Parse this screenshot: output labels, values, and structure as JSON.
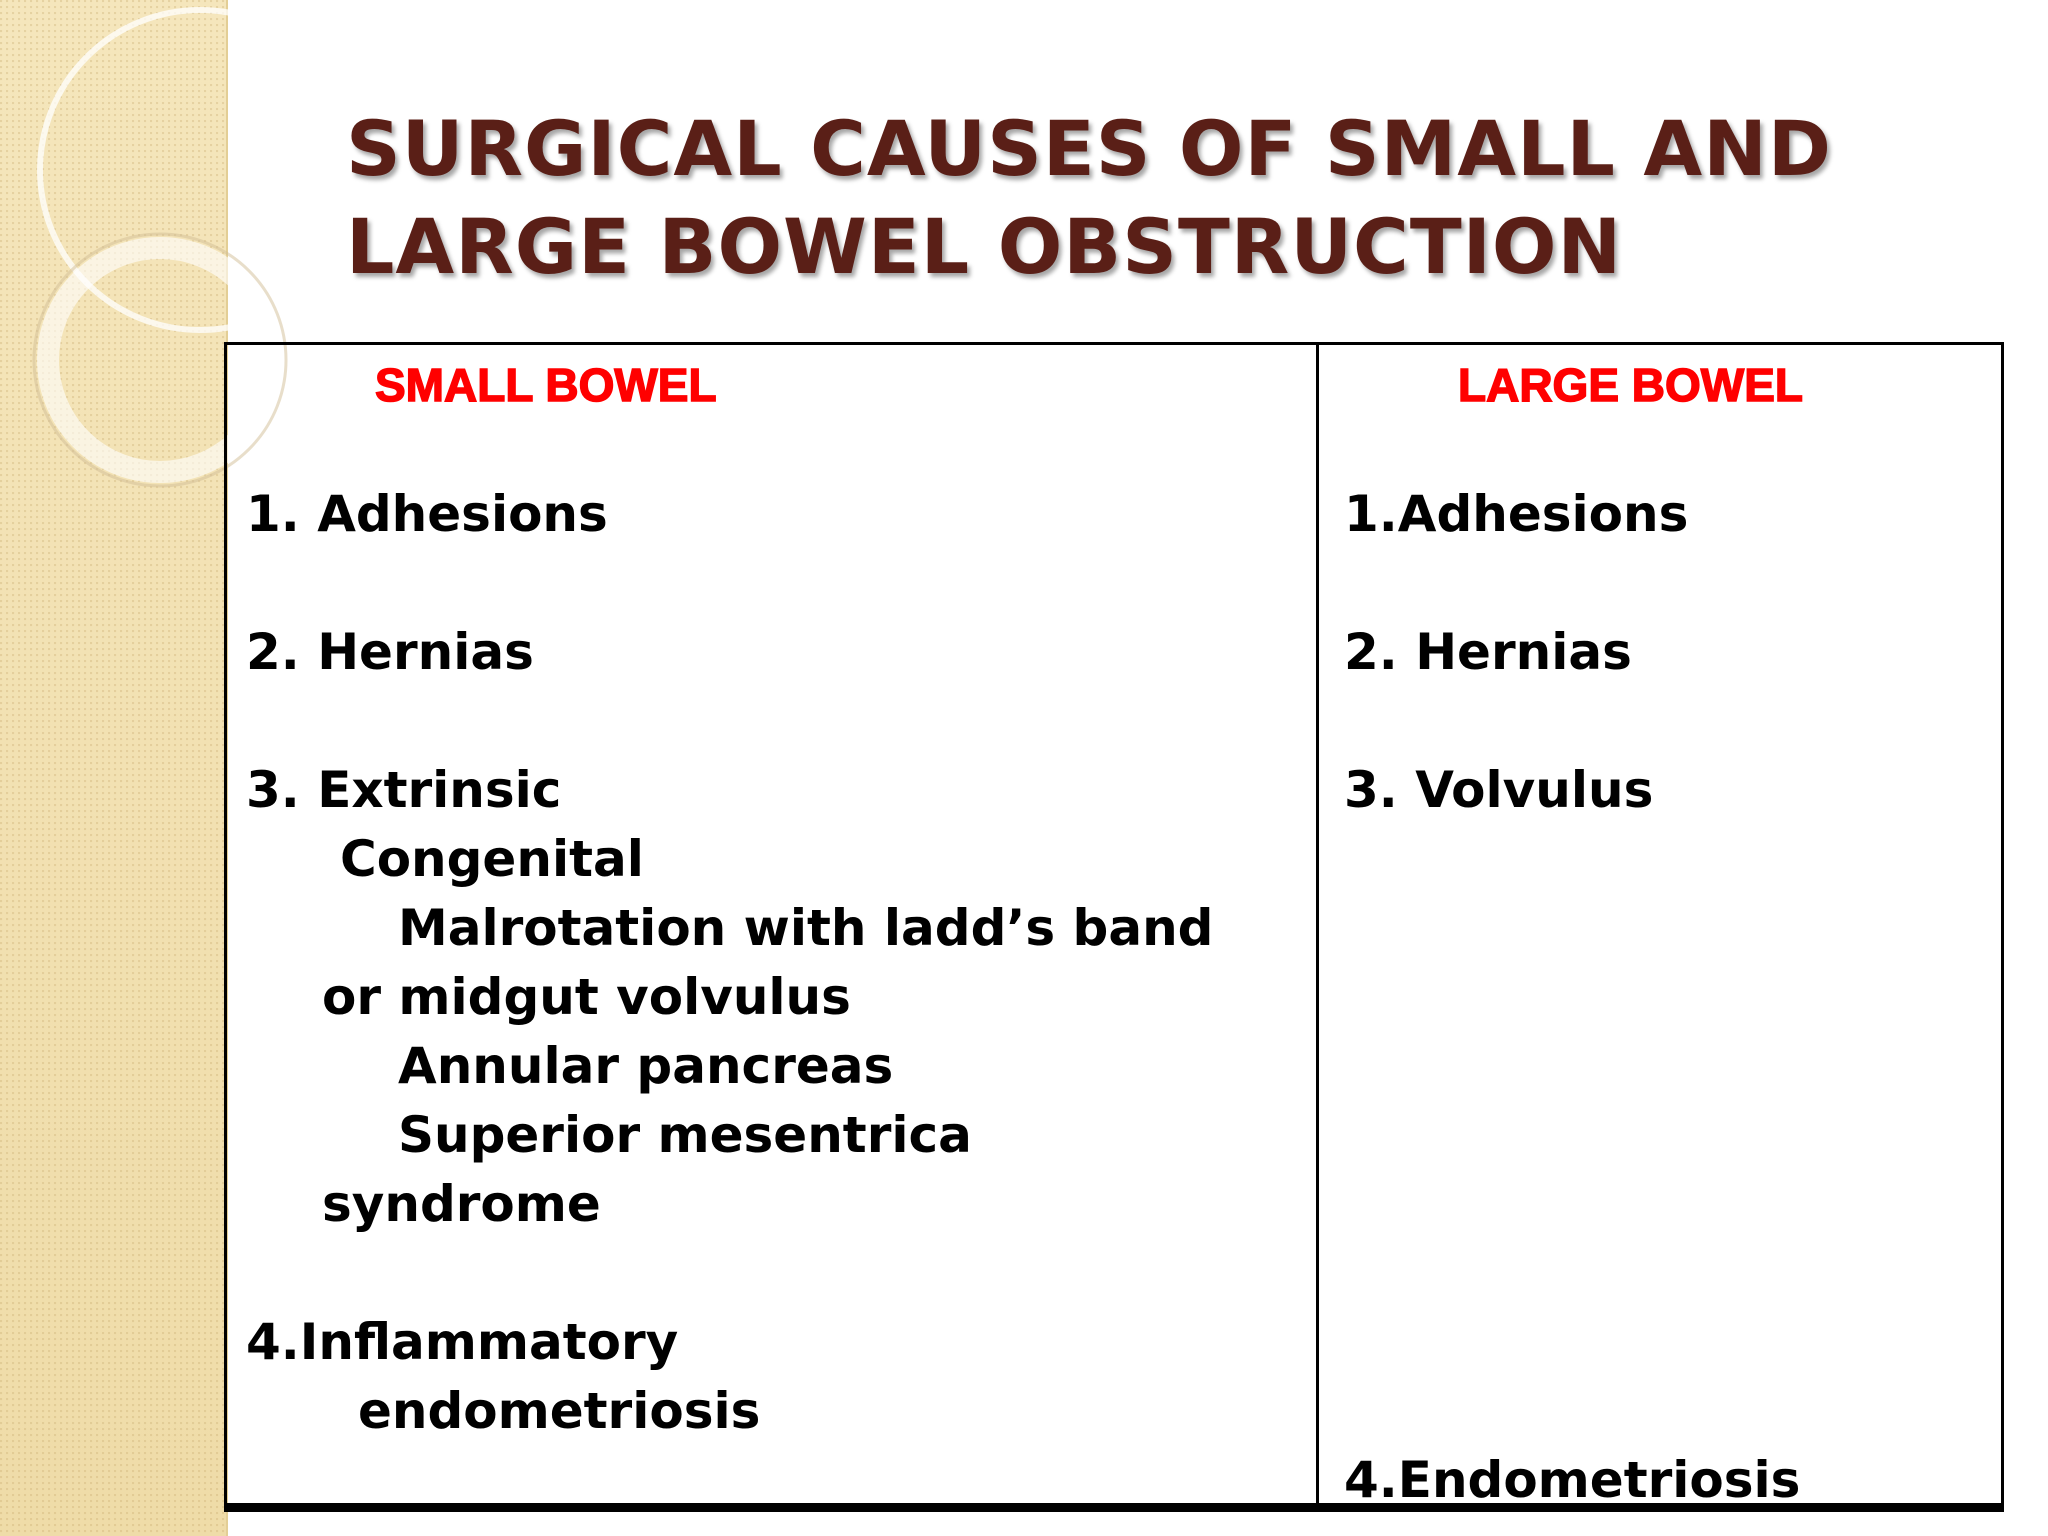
{
  "slide": {
    "title_line1": "SURGICAL CAUSES OF SMALL AND",
    "title_line2": "LARGE BOWEL OBSTRUCTION",
    "colors": {
      "title": "#5a1f17",
      "header": "#ff0000",
      "strip": "#f1e0b0"
    }
  },
  "table": {
    "small_bowel": {
      "header": "SMALL BOWEL",
      "lines": [
        "1. Adhesions",
        "2. Hernias",
        "3. Extrinsic",
        "Congenital",
        "Malrotation with ladd’s band",
        "or midgut volvulus",
        "Annular pancreas",
        "Superior mesentrica",
        "syndrome",
        "4.Inflammatory",
        "endometriosis"
      ]
    },
    "large_bowel": {
      "header": "LARGE BOWEL",
      "lines": [
        "1.Adhesions",
        "2. Hernias",
        "3. Volvulus",
        "4.Endometriosis"
      ]
    }
  }
}
